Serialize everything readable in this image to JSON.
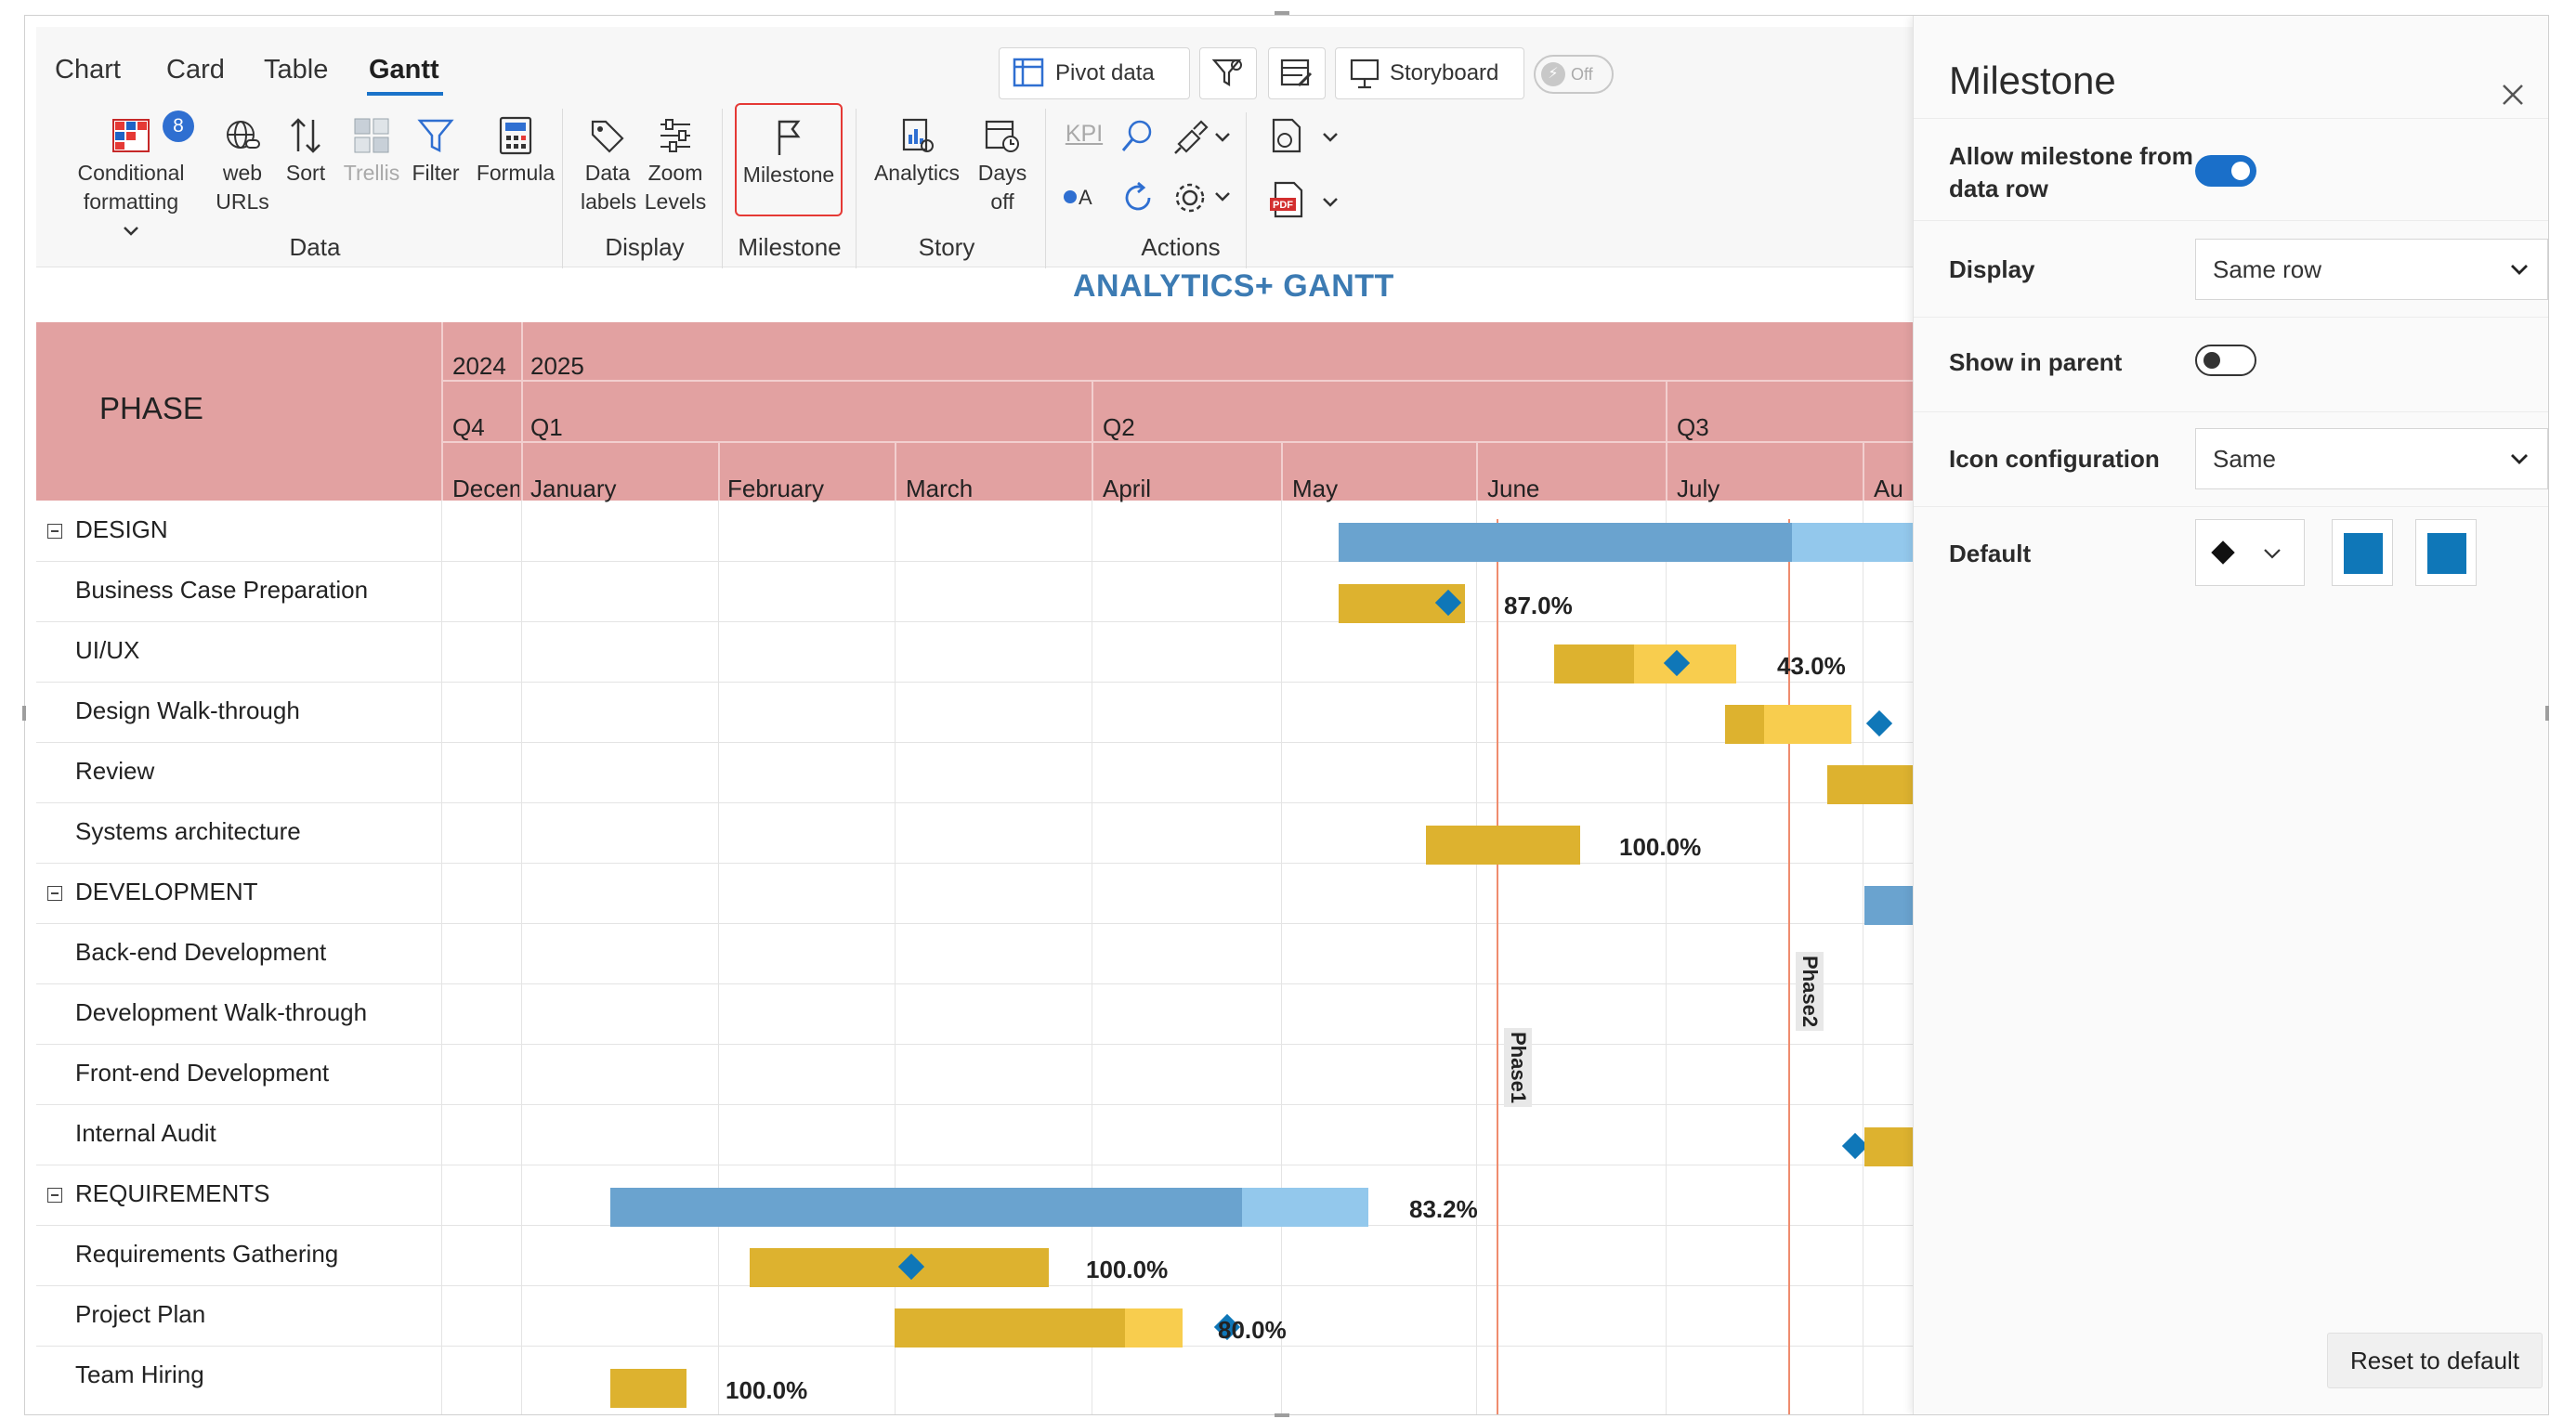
{
  "tabs": [
    "Chart",
    "Card",
    "Table",
    "Gantt"
  ],
  "active_tab": "Gantt",
  "top_buttons": {
    "pivot": "Pivot data",
    "storyboard": "Storyboard",
    "toggle": "Off"
  },
  "ribbon": {
    "conditional_formatting": "Conditional formatting",
    "conditional_line1": "Conditional",
    "conditional_line2": "formatting",
    "conditional_badge": "8",
    "web_urls_line1": "web",
    "web_urls_line2": "URLs",
    "sort": "Sort",
    "trellis": "Trellis",
    "filter": "Filter",
    "formula": "Formula",
    "data_labels_line1": "Data",
    "data_labels_line2": "labels",
    "zoom_levels_line1": "Zoom",
    "zoom_levels_line2": "Levels",
    "milestone": "Milestone",
    "analytics": "Analytics",
    "days_off_line1": "Days",
    "days_off_line2": "off",
    "kpi": "KPI",
    "groups": {
      "data": "Data",
      "display": "Display",
      "milestone": "Milestone",
      "story": "Story",
      "actions": "Actions"
    }
  },
  "gantt": {
    "title": "ANALYTICS+ GANTT",
    "phase_header": "PHASE",
    "years": [
      "2024",
      "2025"
    ],
    "quarters": [
      "Q4",
      "Q1",
      "Q2",
      "Q3"
    ],
    "months": [
      "Decem",
      "January",
      "February",
      "March",
      "April",
      "May",
      "June",
      "July",
      "Au"
    ],
    "rows": [
      {
        "label": "DESIGN",
        "group": true
      },
      {
        "label": "Business Case Preparation",
        "group": false,
        "pct": "87.0%"
      },
      {
        "label": "UI/UX",
        "group": false,
        "pct": "43.0%"
      },
      {
        "label": "Design Walk-through",
        "group": false
      },
      {
        "label": "Review",
        "group": false
      },
      {
        "label": "Systems architecture",
        "group": false,
        "pct": "100.0%"
      },
      {
        "label": "DEVELOPMENT",
        "group": true
      },
      {
        "label": "Back-end Development",
        "group": false
      },
      {
        "label": "Development Walk-through",
        "group": false
      },
      {
        "label": "Front-end Development",
        "group": false
      },
      {
        "label": "Internal Audit",
        "group": false
      },
      {
        "label": "REQUIREMENTS",
        "group": true,
        "pct": "83.2%"
      },
      {
        "label": "Requirements Gathering",
        "group": false,
        "pct": "100.0%"
      },
      {
        "label": "Project Plan",
        "group": false,
        "pct": "80.0%"
      },
      {
        "label": "Team Hiring",
        "group": false,
        "pct": "100.0%"
      }
    ],
    "milestone_lines": [
      "Phase1",
      "Phase2"
    ],
    "colors": {
      "header": "#e2a1a1",
      "group_bar": "#6aa3cf",
      "group_bar_remaining": "#93c8ec",
      "task_bar": "#ddb22f",
      "task_bar_remaining": "#f8cd4e",
      "diamond": "#0f77b8",
      "milestone_line": "#ef8c6e"
    }
  },
  "panel": {
    "title": "Milestone",
    "allow_line1": "Allow milestone from",
    "allow_line2": "data row",
    "allow_value": true,
    "display_label": "Display",
    "display_value": "Same row",
    "show_parent_label": "Show in parent",
    "show_parent_value": false,
    "icon_config_label": "Icon configuration",
    "icon_config_value": "Same",
    "default_label": "Default",
    "default_colors": [
      "#0f77b8",
      "#0f77b8"
    ],
    "reset": "Reset to default"
  }
}
